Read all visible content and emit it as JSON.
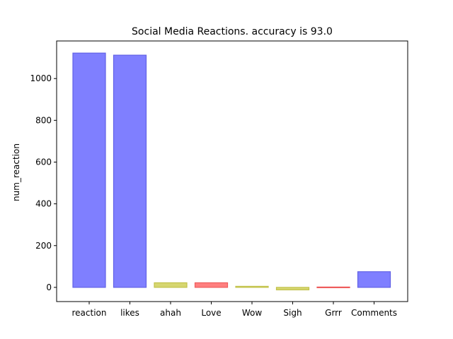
{
  "chart_data": {
    "type": "bar",
    "title": "Social Media Reactions. accuracy is 93.0",
    "xlabel": "",
    "ylabel": "num_reaction",
    "categories": [
      "reaction",
      "likes",
      "ahah",
      "Love",
      "Wow",
      "Sigh",
      "Grrr",
      "Comments"
    ],
    "values": [
      1122,
      1112,
      22,
      22,
      5,
      -12,
      -2,
      75
    ],
    "bar_colors": [
      "#7f7fff",
      "#7f7fff",
      "#d6d670",
      "#ff7f7f",
      "#d6d670",
      "#d6d670",
      "#ff7f7f",
      "#7f7fff"
    ],
    "edge_colors": [
      "#6262e6",
      "#6262e6",
      "#c2c24a",
      "#ee5c5c",
      "#c2c24a",
      "#c2c24a",
      "#ee5c5c",
      "#6262e6"
    ],
    "ylim": [
      -68,
      1180
    ],
    "yticks": [
      0,
      200,
      400,
      600,
      800,
      1000
    ],
    "grid": false
  }
}
